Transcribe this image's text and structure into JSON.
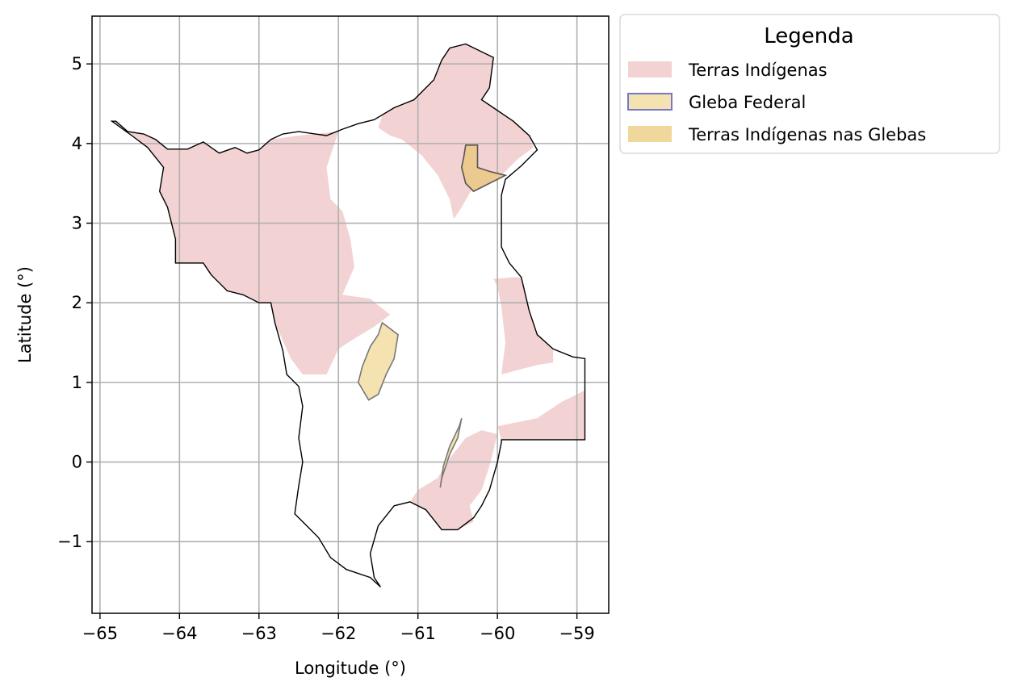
{
  "chart_data": {
    "type": "map",
    "xlabel": "Longitude (°)",
    "ylabel": "Latitude (°)",
    "xlim": [
      -65.1,
      -58.6
    ],
    "ylim": [
      -1.9,
      5.6
    ],
    "x_ticks": [
      -65,
      -64,
      -63,
      -62,
      -61,
      -60,
      -59
    ],
    "x_tick_labels": [
      "−65",
      "−64",
      "−63",
      "−62",
      "−61",
      "−60",
      "−59"
    ],
    "y_ticks": [
      -1,
      0,
      1,
      2,
      3,
      4,
      5
    ],
    "y_tick_labels": [
      "−1",
      "0",
      "1",
      "2",
      "3",
      "4",
      "5"
    ],
    "grid": true,
    "legend": {
      "title": "Legenda",
      "placement": "outside-top-right",
      "entries": [
        {
          "label": "Terras Indígenas",
          "fill": "#f2d2d2",
          "edge": "none"
        },
        {
          "label": "Gleba Federal",
          "fill": "#f4e2b0",
          "edge": "#7777cc"
        },
        {
          "label": "Terras Indígenas nas Glebas",
          "fill": "#f0d89c",
          "edge": "none"
        }
      ]
    },
    "colors": {
      "indigenous": "#f2d2d2",
      "gleba": "#f4e2b0",
      "gleba_overlap": "#ecc98e",
      "boundary": "#000000",
      "grid": "#b0b0b0"
    },
    "layers": [
      {
        "name": "boundary",
        "coords": [
          [
            -64.8,
            4.28
          ],
          [
            -64.65,
            4.15
          ],
          [
            -64.45,
            4.12
          ],
          [
            -64.3,
            4.05
          ],
          [
            -64.15,
            3.93
          ],
          [
            -63.9,
            3.93
          ],
          [
            -63.7,
            4.02
          ],
          [
            -63.5,
            3.88
          ],
          [
            -63.3,
            3.95
          ],
          [
            -63.15,
            3.88
          ],
          [
            -63.0,
            3.92
          ],
          [
            -62.85,
            4.05
          ],
          [
            -62.7,
            4.12
          ],
          [
            -62.5,
            4.15
          ],
          [
            -62.15,
            4.1
          ],
          [
            -61.95,
            4.18
          ],
          [
            -61.75,
            4.25
          ],
          [
            -61.55,
            4.3
          ],
          [
            -61.3,
            4.45
          ],
          [
            -61.05,
            4.55
          ],
          [
            -60.8,
            4.8
          ],
          [
            -60.7,
            5.05
          ],
          [
            -60.6,
            5.2
          ],
          [
            -60.4,
            5.25
          ],
          [
            -60.05,
            5.08
          ],
          [
            -60.1,
            4.7
          ],
          [
            -60.2,
            4.55
          ],
          [
            -60.05,
            4.45
          ],
          [
            -59.8,
            4.28
          ],
          [
            -59.6,
            4.1
          ],
          [
            -59.5,
            3.92
          ],
          [
            -59.7,
            3.72
          ],
          [
            -59.9,
            3.55
          ],
          [
            -59.95,
            3.35
          ],
          [
            -59.95,
            3.0
          ],
          [
            -59.95,
            2.7
          ],
          [
            -59.85,
            2.5
          ],
          [
            -59.7,
            2.32
          ],
          [
            -59.6,
            1.9
          ],
          [
            -59.5,
            1.6
          ],
          [
            -59.3,
            1.42
          ],
          [
            -59.05,
            1.32
          ],
          [
            -58.9,
            1.3
          ],
          [
            -58.9,
            0.28
          ],
          [
            -59.95,
            0.28
          ],
          [
            -59.95,
            0.25
          ],
          [
            -60.0,
            0.0
          ],
          [
            -60.1,
            -0.35
          ],
          [
            -60.2,
            -0.55
          ],
          [
            -60.3,
            -0.7
          ],
          [
            -60.5,
            -0.85
          ],
          [
            -60.7,
            -0.85
          ],
          [
            -60.9,
            -0.6
          ],
          [
            -61.1,
            -0.5
          ],
          [
            -61.3,
            -0.55
          ],
          [
            -61.5,
            -0.8
          ],
          [
            -61.6,
            -1.15
          ],
          [
            -61.55,
            -1.45
          ],
          [
            -61.47,
            -1.57
          ],
          [
            -61.6,
            -1.45
          ],
          [
            -61.9,
            -1.35
          ],
          [
            -62.1,
            -1.2
          ],
          [
            -62.25,
            -0.95
          ],
          [
            -62.45,
            -0.75
          ],
          [
            -62.55,
            -0.65
          ],
          [
            -62.5,
            -0.3
          ],
          [
            -62.45,
            0.0
          ],
          [
            -62.5,
            0.3
          ],
          [
            -62.45,
            0.7
          ],
          [
            -62.5,
            0.95
          ],
          [
            -62.65,
            1.1
          ],
          [
            -62.7,
            1.4
          ],
          [
            -62.8,
            1.75
          ],
          [
            -62.85,
            2.0
          ],
          [
            -63.0,
            2.0
          ],
          [
            -63.2,
            2.1
          ],
          [
            -63.4,
            2.15
          ],
          [
            -63.6,
            2.35
          ],
          [
            -63.7,
            2.5
          ],
          [
            -63.9,
            2.5
          ],
          [
            -64.05,
            2.5
          ],
          [
            -64.05,
            2.8
          ],
          [
            -64.15,
            3.2
          ],
          [
            -64.25,
            3.4
          ],
          [
            -64.2,
            3.7
          ],
          [
            -64.4,
            3.95
          ],
          [
            -64.6,
            4.1
          ],
          [
            -64.85,
            4.28
          ]
        ]
      },
      {
        "name": "indigenous-west",
        "coords": [
          [
            -64.8,
            4.28
          ],
          [
            -64.65,
            4.15
          ],
          [
            -64.45,
            4.12
          ],
          [
            -64.3,
            4.05
          ],
          [
            -64.15,
            3.93
          ],
          [
            -63.9,
            3.93
          ],
          [
            -63.7,
            4.02
          ],
          [
            -63.5,
            3.88
          ],
          [
            -63.3,
            3.95
          ],
          [
            -63.15,
            3.88
          ],
          [
            -63.0,
            3.92
          ],
          [
            -62.85,
            4.05
          ],
          [
            -62.5,
            4.1
          ],
          [
            -62.0,
            4.15
          ],
          [
            -62.15,
            3.7
          ],
          [
            -62.1,
            3.3
          ],
          [
            -61.95,
            3.15
          ],
          [
            -61.85,
            2.8
          ],
          [
            -61.8,
            2.45
          ],
          [
            -61.95,
            2.1
          ],
          [
            -61.6,
            2.05
          ],
          [
            -61.35,
            1.85
          ],
          [
            -61.55,
            1.7
          ],
          [
            -61.8,
            1.55
          ],
          [
            -62.0,
            1.42
          ],
          [
            -62.15,
            1.1
          ],
          [
            -62.45,
            1.1
          ],
          [
            -62.6,
            1.3
          ],
          [
            -62.8,
            1.75
          ],
          [
            -62.85,
            2.0
          ],
          [
            -63.0,
            2.0
          ],
          [
            -63.2,
            2.1
          ],
          [
            -63.4,
            2.15
          ],
          [
            -63.6,
            2.35
          ],
          [
            -63.7,
            2.5
          ],
          [
            -64.05,
            2.5
          ],
          [
            -64.05,
            2.8
          ],
          [
            -64.15,
            3.2
          ],
          [
            -64.25,
            3.4
          ],
          [
            -64.2,
            3.7
          ],
          [
            -64.4,
            3.95
          ],
          [
            -64.6,
            4.1
          ],
          [
            -64.85,
            4.28
          ]
        ]
      },
      {
        "name": "indigenous-north",
        "coords": [
          [
            -61.45,
            4.35
          ],
          [
            -61.3,
            4.45
          ],
          [
            -61.05,
            4.55
          ],
          [
            -60.8,
            4.8
          ],
          [
            -60.7,
            5.05
          ],
          [
            -60.6,
            5.2
          ],
          [
            -60.4,
            5.25
          ],
          [
            -60.05,
            5.08
          ],
          [
            -60.1,
            4.7
          ],
          [
            -60.2,
            4.55
          ],
          [
            -60.05,
            4.45
          ],
          [
            -59.8,
            4.28
          ],
          [
            -59.6,
            4.1
          ],
          [
            -59.55,
            3.95
          ],
          [
            -59.75,
            3.8
          ],
          [
            -59.95,
            3.6
          ],
          [
            -60.25,
            3.55
          ],
          [
            -60.45,
            3.2
          ],
          [
            -60.55,
            3.05
          ],
          [
            -60.6,
            3.3
          ],
          [
            -60.75,
            3.6
          ],
          [
            -60.95,
            3.85
          ],
          [
            -61.2,
            4.05
          ],
          [
            -61.35,
            4.1
          ],
          [
            -61.5,
            4.2
          ]
        ]
      },
      {
        "name": "indigenous-east",
        "coords": [
          [
            -60.05,
            2.3
          ],
          [
            -59.8,
            2.32
          ],
          [
            -59.7,
            2.32
          ],
          [
            -59.6,
            1.9
          ],
          [
            -59.5,
            1.6
          ],
          [
            -59.3,
            1.42
          ],
          [
            -59.3,
            1.25
          ],
          [
            -59.5,
            1.22
          ],
          [
            -59.95,
            1.1
          ],
          [
            -59.9,
            1.5
          ],
          [
            -59.95,
            1.95
          ],
          [
            -60.0,
            2.2
          ]
        ]
      },
      {
        "name": "indigenous-southeast",
        "coords": [
          [
            -60.0,
            0.45
          ],
          [
            -59.5,
            0.55
          ],
          [
            -59.2,
            0.75
          ],
          [
            -58.9,
            0.9
          ],
          [
            -58.9,
            0.28
          ],
          [
            -59.95,
            0.28
          ],
          [
            -60.0,
            0.45
          ]
        ]
      },
      {
        "name": "indigenous-south",
        "coords": [
          [
            -61.0,
            -0.35
          ],
          [
            -60.75,
            -0.2
          ],
          [
            -60.6,
            0.05
          ],
          [
            -60.4,
            0.3
          ],
          [
            -60.2,
            0.4
          ],
          [
            -60.0,
            0.35
          ],
          [
            -60.1,
            -0.05
          ],
          [
            -60.2,
            -0.35
          ],
          [
            -60.35,
            -0.55
          ],
          [
            -60.3,
            -0.75
          ],
          [
            -60.5,
            -0.85
          ],
          [
            -60.7,
            -0.85
          ],
          [
            -60.9,
            -0.6
          ],
          [
            -61.1,
            -0.5
          ]
        ]
      },
      {
        "name": "gleba-central",
        "coords": [
          [
            -61.45,
            1.75
          ],
          [
            -61.25,
            1.6
          ],
          [
            -61.3,
            1.3
          ],
          [
            -61.4,
            1.1
          ],
          [
            -61.5,
            0.85
          ],
          [
            -61.62,
            0.78
          ],
          [
            -61.75,
            1.0
          ],
          [
            -61.7,
            1.2
          ],
          [
            -61.6,
            1.45
          ],
          [
            -61.5,
            1.6
          ]
        ]
      },
      {
        "name": "gleba-south",
        "coords": [
          [
            -60.45,
            0.55
          ],
          [
            -60.5,
            0.3
          ],
          [
            -60.6,
            0.1
          ],
          [
            -60.7,
            -0.2
          ],
          [
            -60.72,
            -0.32
          ],
          [
            -60.68,
            -0.05
          ],
          [
            -60.6,
            0.2
          ],
          [
            -60.48,
            0.45
          ]
        ]
      },
      {
        "name": "gleba-north",
        "coords": [
          [
            -60.4,
            3.98
          ],
          [
            -60.25,
            3.98
          ],
          [
            -60.25,
            3.7
          ],
          [
            -60.1,
            3.65
          ],
          [
            -59.9,
            3.6
          ],
          [
            -60.1,
            3.5
          ],
          [
            -60.3,
            3.4
          ],
          [
            -60.4,
            3.5
          ],
          [
            -60.45,
            3.7
          ],
          [
            -60.42,
            3.85
          ]
        ]
      }
    ]
  }
}
